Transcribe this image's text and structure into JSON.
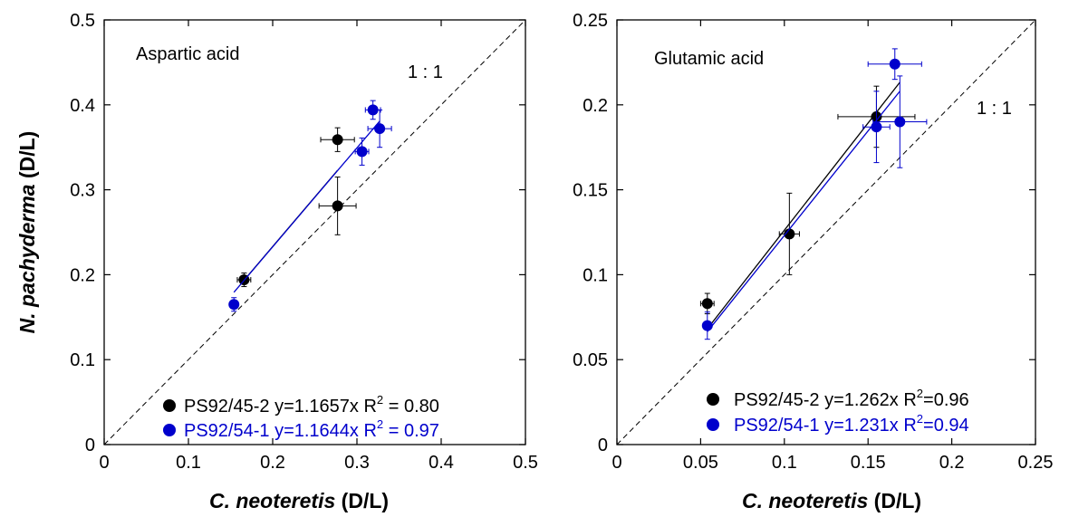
{
  "chart_data": [
    {
      "type": "scatter",
      "panel_label": "Aspartic acid",
      "xlabel_italic": "C. neoteretis",
      "xlabel_rest": " (D/L)",
      "ylabel_italic": "N. pachyderma",
      "ylabel_rest": " (D/L)",
      "xlim": [
        0,
        0.5
      ],
      "ylim": [
        0,
        0.5
      ],
      "xticks": [
        "0",
        "0.1",
        "0.2",
        "0.3",
        "0.4",
        "0.5"
      ],
      "yticks": [
        "0",
        "0.1",
        "0.2",
        "0.3",
        "0.4",
        "0.5"
      ],
      "xtick_values": [
        0,
        0.1,
        0.2,
        0.3,
        0.4,
        0.5
      ],
      "ytick_values": [
        0,
        0.1,
        0.2,
        0.3,
        0.4,
        0.5
      ],
      "one_to_one_label": "1 : 1",
      "legend_placement": "bottom-right",
      "series": [
        {
          "name": "PS92/45-2",
          "color": "#000000",
          "legend_text": "PS92/45-2 y=1.1657x  R",
          "r2_sup": "2",
          "r2_value": " = 0.80",
          "slope": 1.1657,
          "fit_x_range": [
            0.166,
            0.277
          ],
          "points": [
            {
              "x": 0.166,
              "y": 0.194,
              "xerr": 0.008,
              "yerr": 0.008
            },
            {
              "x": 0.277,
              "y": 0.281,
              "xerr": 0.022,
              "yerr": 0.034
            },
            {
              "x": 0.277,
              "y": 0.359,
              "xerr": 0.02,
              "yerr": 0.014
            }
          ]
        },
        {
          "name": "PS92/54-1",
          "color": "#0000cc",
          "legend_text": "PS92/54-1 y=1.1644x  R",
          "r2_sup": "2",
          "r2_value": " = 0.97",
          "slope": 1.1644,
          "fit_x_range": [
            0.154,
            0.327
          ],
          "points": [
            {
              "x": 0.154,
              "y": 0.165,
              "xerr": 0.004,
              "yerr": 0.008
            },
            {
              "x": 0.306,
              "y": 0.345,
              "xerr": 0.008,
              "yerr": 0.016
            },
            {
              "x": 0.319,
              "y": 0.394,
              "xerr": 0.009,
              "yerr": 0.011
            },
            {
              "x": 0.327,
              "y": 0.372,
              "xerr": 0.014,
              "yerr": 0.022
            }
          ]
        }
      ]
    },
    {
      "type": "scatter",
      "panel_label": "Glutamic acid",
      "xlabel_italic": "C. neoteretis",
      "xlabel_rest": " (D/L)",
      "ylabel_italic": "",
      "ylabel_rest": "",
      "xlim": [
        0,
        0.25
      ],
      "ylim": [
        0,
        0.25
      ],
      "xticks": [
        "0",
        "0.05",
        "0.1",
        "0.15",
        "0.2",
        "0.25"
      ],
      "yticks": [
        "0",
        "0.05",
        "0.1",
        "0.15",
        "0.2",
        "0.25"
      ],
      "xtick_values": [
        0,
        0.05,
        0.1,
        0.15,
        0.2,
        0.25
      ],
      "ytick_values": [
        0,
        0.05,
        0.1,
        0.15,
        0.2,
        0.25
      ],
      "one_to_one_label": "1 : 1",
      "legend_placement": "bottom-right",
      "series": [
        {
          "name": "PS92/45-2",
          "color": "#000000",
          "legend_text": "PS92/45-2 y=1.262x  R",
          "r2_sup": "2",
          "r2_value": "=0.96",
          "slope": 1.262,
          "fit_x_range": [
            0.054,
            0.169
          ],
          "points": [
            {
              "x": 0.054,
              "y": 0.083,
              "xerr": 0.004,
              "yerr": 0.006
            },
            {
              "x": 0.103,
              "y": 0.124,
              "xerr": 0.006,
              "yerr": 0.024
            },
            {
              "x": 0.155,
              "y": 0.193,
              "xerr": 0.023,
              "yerr": 0.018
            }
          ]
        },
        {
          "name": "PS92/54-1",
          "color": "#0000cc",
          "legend_text": "PS92/54-1 y=1.231x  R",
          "r2_sup": "2",
          "r2_value": "=0.94",
          "slope": 1.231,
          "fit_x_range": [
            0.054,
            0.169
          ],
          "points": [
            {
              "x": 0.054,
              "y": 0.07,
              "xerr": 0.002,
              "yerr": 0.008
            },
            {
              "x": 0.155,
              "y": 0.187,
              "xerr": 0.008,
              "yerr": 0.021
            },
            {
              "x": 0.166,
              "y": 0.224,
              "xerr": 0.016,
              "yerr": 0.009
            },
            {
              "x": 0.169,
              "y": 0.19,
              "xerr": 0.016,
              "yerr": 0.027
            }
          ]
        }
      ]
    }
  ]
}
